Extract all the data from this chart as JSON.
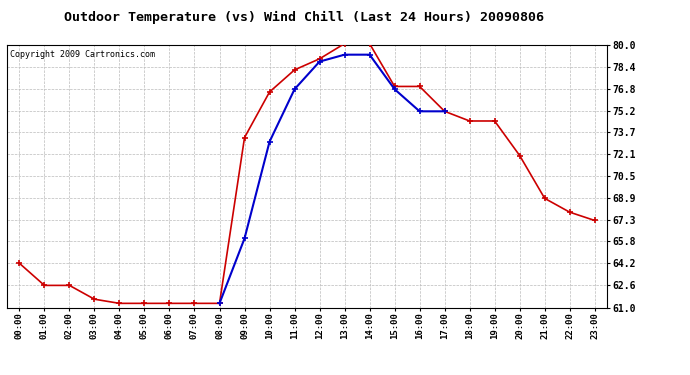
{
  "title": "Outdoor Temperature (vs) Wind Chill (Last 24 Hours) 20090806",
  "copyright": "Copyright 2009 Cartronics.com",
  "hours": [
    "00:00",
    "01:00",
    "02:00",
    "03:00",
    "04:00",
    "05:00",
    "06:00",
    "07:00",
    "08:00",
    "09:00",
    "10:00",
    "11:00",
    "12:00",
    "13:00",
    "14:00",
    "15:00",
    "16:00",
    "17:00",
    "18:00",
    "19:00",
    "20:00",
    "21:00",
    "22:00",
    "23:00"
  ],
  "temp": [
    64.2,
    62.6,
    62.6,
    61.6,
    61.3,
    61.3,
    61.3,
    61.3,
    61.3,
    73.3,
    76.6,
    78.2,
    79.0,
    80.1,
    80.1,
    77.0,
    77.0,
    75.2,
    74.5,
    74.5,
    72.0,
    68.9,
    67.9,
    67.3
  ],
  "windchill": [
    null,
    null,
    null,
    null,
    null,
    null,
    null,
    null,
    61.3,
    66.0,
    73.0,
    76.8,
    78.8,
    79.3,
    79.3,
    76.8,
    75.2,
    75.2,
    null,
    null,
    null,
    null,
    null,
    null
  ],
  "temp_color": "#cc0000",
  "windchill_color": "#0000cc",
  "bg_color": "#ffffff",
  "plot_bg_color": "#ffffff",
  "grid_color": "#bbbbbb",
  "ymin": 61.0,
  "ymax": 80.0,
  "yticks": [
    61.0,
    62.6,
    64.2,
    65.8,
    67.3,
    68.9,
    70.5,
    72.1,
    73.7,
    75.2,
    76.8,
    78.4,
    80.0
  ]
}
